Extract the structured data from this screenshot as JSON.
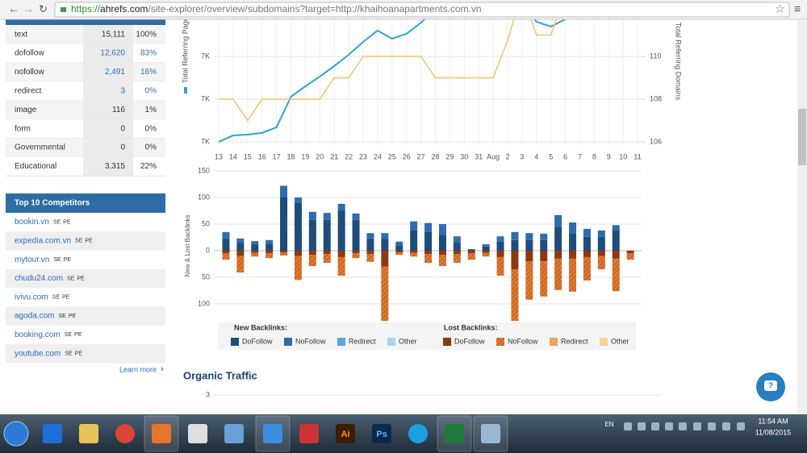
{
  "browser": {
    "url_scheme": "https://",
    "url_host": "ahrefs.com",
    "url_path": "/site-explorer/overview/subdomains?target=http://khaihoanapartments.com.vn"
  },
  "link_types": {
    "rows": [
      [
        "text",
        "15,111",
        "100%"
      ],
      [
        "dofollow",
        "12,620",
        "83%"
      ],
      [
        "nofollow",
        "2,491",
        "16%"
      ],
      [
        "redirect",
        "3",
        "0%"
      ],
      [
        "image",
        "116",
        "1%"
      ],
      [
        "form",
        "0",
        "0%"
      ],
      [
        "Governmental",
        "0",
        "0%"
      ],
      [
        "Educational",
        "3,315",
        "22%"
      ]
    ]
  },
  "competitors": {
    "title": "Top 10 Competitors",
    "tags": [
      "SE",
      "PE"
    ],
    "rows": [
      "bookin.vn",
      "expedia.com.vn",
      "mytour.vn",
      "chudu24.com",
      "ivivu.com",
      "agoda.com",
      "booking.com",
      "youtube.com"
    ],
    "learn_more": "Learn more"
  },
  "chart_data": [
    {
      "type": "line",
      "y_label": "Total Referring Pages",
      "y2_label": "Total Referring Domains",
      "categories": [
        "13",
        "14",
        "15",
        "16",
        "17",
        "18",
        "19",
        "20",
        "21",
        "22",
        "23",
        "24",
        "25",
        "26",
        "27",
        "28",
        "29",
        "30",
        "31",
        "Aug",
        "2",
        "3",
        "4",
        "5",
        "6",
        "7",
        "8",
        "9",
        "10",
        "11"
      ],
      "ylim": [
        6800,
        7400
      ],
      "yticks": [
        {
          "value": 6800,
          "label": "7K"
        },
        {
          "value": 7000,
          "label": "7K"
        },
        {
          "value": 7200,
          "label": "7K"
        }
      ],
      "y2lim": [
        106,
        112
      ],
      "y2ticks": [
        106,
        108,
        110
      ],
      "grid": true,
      "series": [
        {
          "color": "#2aa3db",
          "values": [
            6800,
            6830,
            6834,
            6842,
            6868,
            7011,
            7060,
            7106,
            7155,
            7208,
            7268,
            7321,
            7283,
            7306,
            7358,
            7420,
            7450,
            7470,
            7480,
            7490,
            7490,
            7460,
            7362,
            7340,
            7374,
            7420,
            7440,
            7460,
            7480,
            7500
          ]
        },
        {
          "color": "#f5c26b",
          "axis": "y2",
          "values": [
            108,
            108,
            107,
            108,
            108,
            108,
            108,
            108,
            109,
            109,
            110,
            110,
            110,
            110,
            110,
            109,
            109,
            109,
            109,
            109,
            110.75,
            113,
            111,
            111,
            113,
            113,
            113,
            113,
            113,
            113
          ]
        }
      ]
    },
    {
      "type": "bar",
      "stacked": true,
      "y_label": "New & Lost Backlinks",
      "legend_titles": [
        "New Backlinks:",
        "Lost Backlinks:"
      ],
      "categories": [
        null,
        null,
        null,
        null,
        null,
        null,
        null,
        null,
        null,
        null,
        null,
        null,
        null,
        null,
        null,
        null,
        null,
        null,
        null,
        null,
        null,
        null,
        null,
        null,
        null,
        null,
        null,
        null,
        null
      ],
      "ylim": [
        -135,
        150
      ],
      "yticks": [
        {
          "value": -100,
          "label": "100"
        },
        {
          "value": -50,
          "label": "50"
        },
        0,
        50,
        100,
        150
      ],
      "grid": true,
      "series": [
        {
          "name": "DoFollow",
          "group": 0,
          "color": "#1e4d7b",
          "values": [
            22,
            15,
            12,
            13,
            100,
            90,
            58,
            58,
            75,
            58,
            22,
            22,
            10,
            38,
            35,
            30,
            15,
            2,
            8,
            17,
            20,
            20,
            20,
            45,
            33,
            26,
            25,
            38,
            0
          ]
        },
        {
          "name": "NoFollow",
          "group": 0,
          "color": "#2f6cad",
          "values": [
            13,
            8,
            6,
            7,
            22,
            10,
            15,
            13,
            13,
            12,
            11,
            11,
            7,
            17,
            17,
            20,
            12,
            1,
            4,
            10,
            15,
            13,
            12,
            22,
            20,
            15,
            13,
            10,
            0
          ]
        },
        {
          "name": "Redirect",
          "group": 0,
          "color": "#5aa6dd",
          "values": [
            0,
            0,
            0,
            0,
            0,
            0,
            0,
            0,
            0,
            0,
            0,
            0,
            0,
            0,
            0,
            0,
            0,
            0,
            0,
            0,
            0,
            0,
            0,
            0,
            0,
            0,
            0,
            0,
            0
          ]
        },
        {
          "name": "Other",
          "group": 0,
          "color": "#a9d4ee",
          "values": [
            0,
            0,
            0,
            0,
            0,
            0,
            0,
            0,
            0,
            0,
            0,
            0,
            0,
            0,
            0,
            0,
            0,
            0,
            0,
            0,
            0,
            0,
            0,
            0,
            0,
            0,
            0,
            0,
            0
          ]
        },
        {
          "name": "DoFollow",
          "group": 1,
          "color": "#8a3a10",
          "values": [
            -5,
            -10,
            -4,
            -5,
            -3,
            -10,
            -8,
            -6,
            -12,
            -5,
            -6,
            -30,
            -3,
            -4,
            -6,
            -8,
            -6,
            -5,
            -4,
            -12,
            -35,
            -20,
            -20,
            -15,
            -15,
            -12,
            -10,
            -15,
            -5
          ]
        },
        {
          "name": "NoFollow",
          "group": 1,
          "color": "#d4661c",
          "pattern": "hatch",
          "values": [
            -12,
            -31,
            -7,
            -9,
            -6,
            -45,
            -21,
            -17,
            -35,
            -9,
            -15,
            -102,
            -5,
            -7,
            -17,
            -21,
            -17,
            -12,
            -7,
            -35,
            -97,
            -72,
            -66,
            -59,
            -62,
            -44,
            -25,
            -61,
            -12
          ]
        },
        {
          "name": "Redirect",
          "group": 1,
          "color": "#e8a04a",
          "pattern": "hatch",
          "values": [
            0,
            0,
            0,
            0,
            0,
            0,
            0,
            0,
            0,
            0,
            0,
            0,
            0,
            0,
            0,
            0,
            0,
            0,
            0,
            0,
            0,
            0,
            0,
            0,
            0,
            0,
            0,
            0,
            0
          ]
        },
        {
          "name": "Other",
          "group": 1,
          "color": "#f2cf8f",
          "pattern": "hatch",
          "values": [
            0,
            0,
            0,
            0,
            0,
            0,
            0,
            0,
            0,
            0,
            0,
            0,
            0,
            0,
            0,
            0,
            0,
            0,
            0,
            0,
            0,
            0,
            0,
            0,
            0,
            0,
            0,
            0,
            0
          ]
        }
      ]
    }
  ],
  "organic_traffic": {
    "title": "Organic Traffic",
    "yticks": [
      3
    ]
  },
  "taskbar": {
    "apps": [
      "Ai",
      "Ps"
    ],
    "language": "EN",
    "time": "11:54 AM",
    "date": "11/08/2015"
  }
}
